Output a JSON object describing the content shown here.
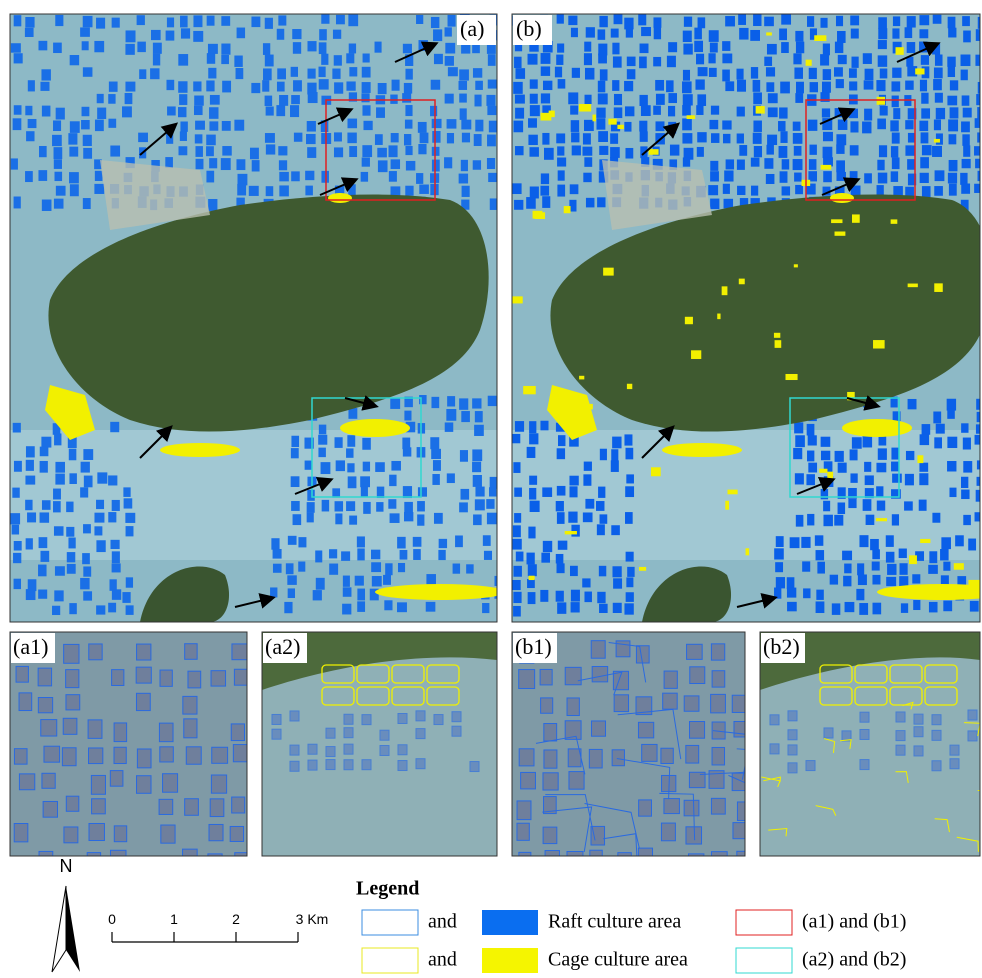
{
  "panels": {
    "a": "(a)",
    "b": "(b)",
    "a1": "(a1)",
    "a2": "(a2)",
    "b1": "(b1)",
    "b2": "(b2)"
  },
  "north_arrow": "N",
  "scale_bar": {
    "labels": [
      "0",
      "1",
      "2",
      "3 Km"
    ]
  },
  "legend": {
    "title": "Legend",
    "rows": [
      {
        "joiner": "and",
        "label": "Raft culture area",
        "box_label": "(a1) and (b1)"
      },
      {
        "joiner": "and",
        "label": "Cage culture area",
        "box_label": "(a2) and (b2)"
      }
    ]
  }
}
